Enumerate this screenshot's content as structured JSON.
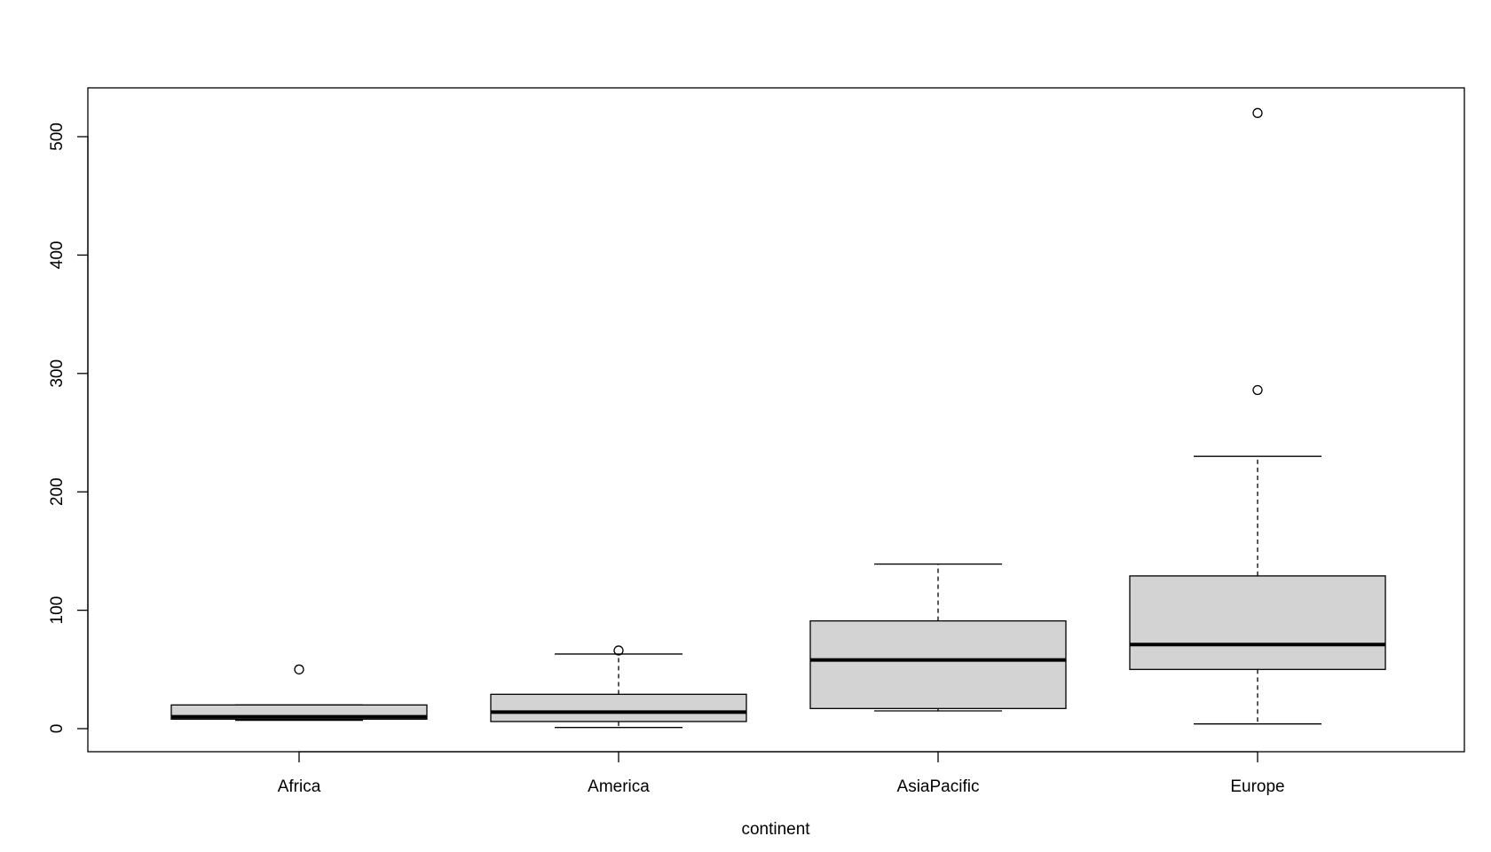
{
  "chart_data": {
    "type": "boxplot",
    "xlabel": "continent",
    "ylabel": "",
    "title": "",
    "ylim": [
      -20,
      540
    ],
    "yticks": [
      0,
      100,
      200,
      300,
      400,
      500
    ],
    "box_fill": "#d3d3d3",
    "categories": [
      "Africa",
      "America",
      "AsiaPacific",
      "Europe"
    ],
    "boxes": [
      {
        "name": "Africa",
        "whisker_low": 7,
        "q1": 8,
        "median": 10,
        "q3": 20,
        "whisker_high": 20,
        "outliers": [
          50
        ]
      },
      {
        "name": "America",
        "whisker_low": 1,
        "q1": 6,
        "median": 14,
        "q3": 29,
        "whisker_high": 63,
        "outliers": [
          66
        ]
      },
      {
        "name": "AsiaPacific",
        "whisker_low": 15,
        "q1": 17,
        "median": 58,
        "q3": 91,
        "whisker_high": 139,
        "outliers": []
      },
      {
        "name": "Europe",
        "whisker_low": 4,
        "q1": 50,
        "median": 71,
        "q3": 129,
        "whisker_high": 230,
        "outliers": [
          286,
          520
        ]
      }
    ]
  }
}
